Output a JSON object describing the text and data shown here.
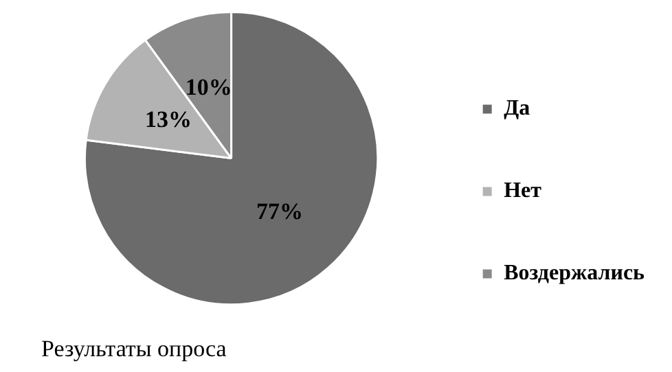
{
  "chart_data": {
    "type": "pie",
    "title": "Результаты опроса",
    "categories": [
      "Да",
      "Нет",
      "Воздержались"
    ],
    "values": [
      77,
      13,
      10
    ],
    "colors": [
      "#6b6b6b",
      "#b3b3b3",
      "#8a8a8a"
    ],
    "value_labels": [
      "77%",
      "13%",
      "10%"
    ],
    "legend": "right"
  }
}
